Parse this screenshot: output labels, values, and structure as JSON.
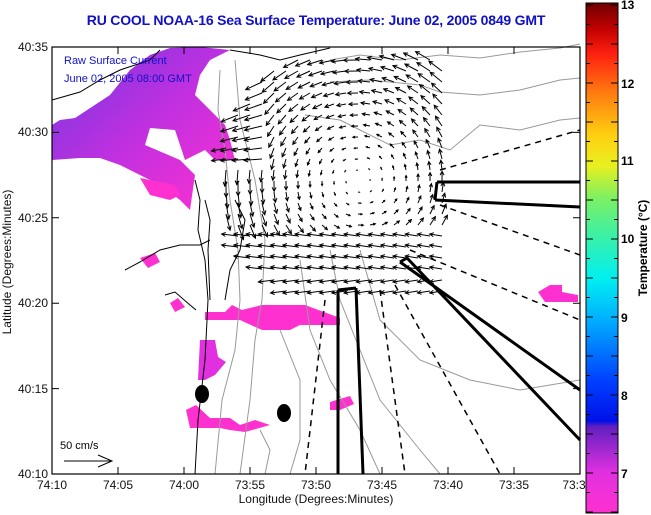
{
  "title": "RU COOL  NOAA-16  Sea Surface Temperature:  June 02, 2005 0849 GMT",
  "annotations": {
    "line1": "Raw Surface Current",
    "line2": "June 02, 2005 08:00 GMT",
    "scale_label": "50 cm/s"
  },
  "axes": {
    "xlabel": "Longitude (Degrees:Minutes)",
    "ylabel": "Latitude (Degrees:Minutes)",
    "xticks": [
      "74:10",
      "74:05",
      "74:00",
      "73:55",
      "73:50",
      "73:45",
      "73:40",
      "73:35",
      "73:3"
    ],
    "yticks": [
      "40:35",
      "40:30",
      "40:25",
      "40:20",
      "40:15",
      "40:10"
    ]
  },
  "colorbar": {
    "label": "Temperature (°C)",
    "ticks": [
      "13",
      "12",
      "11",
      "10",
      "9",
      "8",
      "7"
    ],
    "range": [
      6.4,
      13
    ],
    "colors": {
      "high": "#7a0000",
      "red": "#ff1010",
      "orange": "#ff9010",
      "yellow": "#f0f010",
      "green": "#60e080",
      "cyan": "#00f0f0",
      "blue": "#0010f0",
      "purple": "#7030c0",
      "magenta": "#ff30d0"
    }
  },
  "colors": {
    "title": "#1010c8",
    "sst_magenta": "#ff30d0",
    "sst_purple": "#8040e0"
  },
  "chart_data": {
    "type": "map",
    "title": "RU COOL  NOAA-16  Sea Surface Temperature:  June 02, 2005 0849 GMT",
    "xlabel": "Longitude (Degrees:Minutes)",
    "ylabel": "Latitude (Degrees:Minutes)",
    "xlim": [
      "74:10",
      "73:30"
    ],
    "ylim": [
      "40:10",
      "40:35"
    ],
    "colorbar_range_c": [
      6.4,
      13
    ],
    "sst_observed_range_c": [
      6.5,
      7.2
    ]
  }
}
